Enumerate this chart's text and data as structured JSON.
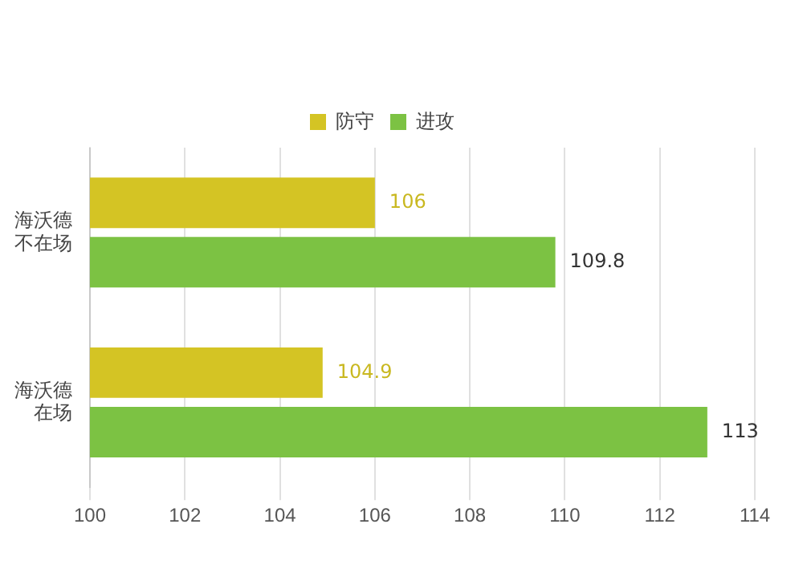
{
  "chart_data": {
    "type": "bar",
    "orientation": "horizontal",
    "categories": [
      "海沃德不在场",
      "海沃德在场"
    ],
    "series": [
      {
        "name": "防守",
        "color": "#d4c424",
        "values": [
          106,
          104.9
        ]
      },
      {
        "name": "进攻",
        "color": "#7cc243",
        "values": [
          109.8,
          113
        ]
      }
    ],
    "xlim": [
      100,
      114
    ],
    "xticks": [
      100,
      102,
      104,
      106,
      108,
      110,
      112,
      114
    ],
    "grid": "x",
    "legend": "top",
    "data_labels": true
  }
}
